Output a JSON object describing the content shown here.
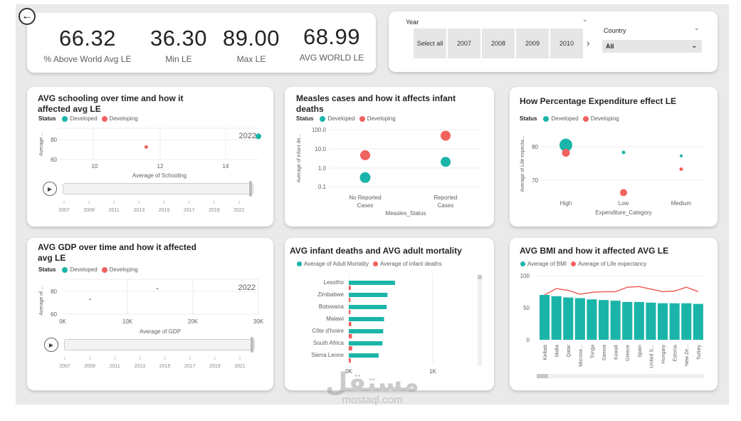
{
  "kpis": [
    {
      "value": "66.32",
      "label": "% Above World Avg LE"
    },
    {
      "value": "36.30",
      "label": "Min LE"
    },
    {
      "value": "89.00",
      "label": "Max LE"
    },
    {
      "value": "68.99",
      "label": "AVG WORLD LE"
    }
  ],
  "filters": {
    "year_title": "Year",
    "year_options": [
      "Select all",
      "2007",
      "2008",
      "2009",
      "2010"
    ],
    "country_title": "Country",
    "country_value": "All"
  },
  "colors": {
    "developed": "#1AB5A8",
    "developing": "#F0625E",
    "bar": "#1AB5A8",
    "line": "#F0625E"
  },
  "status": {
    "label": "Status",
    "developed": "Developed",
    "developing": "Developing"
  },
  "charts": {
    "schooling": {
      "title_line1": "AVG schooling over time and how it",
      "title_line2": "affected avg LE",
      "year_label": "2022",
      "xlabel": "Average of Schooling",
      "ylabel": "Average ...",
      "xticks": [
        "10",
        "12",
        "14"
      ],
      "yticks": [
        "80",
        "60"
      ],
      "timeline": [
        "2007",
        "2009",
        "2011",
        "2013",
        "2015",
        "2017",
        "2019",
        "2021"
      ]
    },
    "measles": {
      "title_line1": "Measles cases and how it affects infant",
      "title_line2": "deaths",
      "xlabel": "Measles_Status",
      "ylabel": "Average of infant de...",
      "yticks": [
        "100.0",
        "10.0",
        "1.0",
        "0.1"
      ],
      "cat1_line1": "No Reported",
      "cat1_line2": "Cases",
      "cat2_line1": "Reported",
      "cat2_line2": "Cases"
    },
    "expenditure": {
      "title": "How Percentage Expenditure effect LE",
      "xlabel": "Expenditure_Category",
      "ylabel": "Average of Life expecta...",
      "yticks": [
        "80",
        "70"
      ],
      "categories": [
        "High",
        "Low",
        "Medium"
      ]
    },
    "gdp": {
      "title_line1": "AVG GDP over time and how it affected",
      "title_line2": "avg LE",
      "year_label": "2022",
      "xlabel": "Average of GDP",
      "ylabel": "Average of ...",
      "xticks": [
        "0K",
        "10K",
        "20K",
        "30K"
      ],
      "yticks": [
        "80",
        "60"
      ],
      "timeline": [
        "2007",
        "2009",
        "2011",
        "2013",
        "2015",
        "2017",
        "2019",
        "2021"
      ]
    },
    "infant_adult": {
      "title": "AVG infant deaths and AVG adult mortality",
      "legend_a": "Average of Adult Mortality",
      "legend_b": "Average of infant deaths",
      "xticks": [
        "0K",
        "1K"
      ]
    },
    "bmi": {
      "title": "AVG BMI and how it affected AVG LE",
      "legend_a": "Average of BMI",
      "legend_b": "Average of Life expectancy",
      "yticks": [
        "100",
        "50",
        "0"
      ]
    }
  },
  "chart_data": [
    {
      "type": "scatter",
      "title": "AVG schooling over time and how it affected avg LE",
      "xlabel": "Average of Schooling",
      "ylabel": "Average ...",
      "xlim": [
        9,
        15
      ],
      "ylim": [
        55,
        90
      ],
      "series": [
        {
          "name": "Developed",
          "points": [
            {
              "x": 15.0,
              "y": 81
            }
          ]
        },
        {
          "name": "Developing",
          "points": [
            {
              "x": 11.6,
              "y": 69
            }
          ]
        }
      ]
    },
    {
      "type": "scatter",
      "title": "Measles cases and how it affects infant deaths",
      "xlabel": "Measles_Status",
      "ylabel": "Average of infant de...",
      "categories": [
        "No Reported Cases",
        "Reported Cases"
      ],
      "yscale": "log",
      "ylim": [
        0.1,
        100
      ],
      "series": [
        {
          "name": "Developed",
          "values": [
            0.3,
            2.0
          ],
          "sizes": [
            15,
            14
          ]
        },
        {
          "name": "Developing",
          "values": [
            4.5,
            48
          ],
          "sizes": [
            14,
            14
          ]
        }
      ]
    },
    {
      "type": "scatter",
      "title": "How Percentage Expenditure effect LE",
      "xlabel": "Expenditure_Category",
      "ylabel": "Average of Life expecta...",
      "categories": [
        "High",
        "Low",
        "Medium"
      ],
      "ylim": [
        64,
        88
      ],
      "series": [
        {
          "name": "Developed",
          "values": [
            80.5,
            78.3,
            77.3
          ],
          "sizes": [
            18,
            5,
            4
          ]
        },
        {
          "name": "Developing",
          "values": [
            78.2,
            66.3,
            73.3
          ],
          "sizes": [
            11,
            10,
            5
          ]
        }
      ]
    },
    {
      "type": "scatter",
      "title": "AVG GDP over time and how it affected avg LE",
      "xlabel": "Average of GDP",
      "ylabel": "Average of ...",
      "xlim": [
        0,
        30000
      ],
      "ylim": [
        57,
        90
      ],
      "series": [
        {
          "name": "Developed",
          "points": [
            {
              "x": 14500,
              "y": 81
            }
          ]
        },
        {
          "name": "Developing",
          "points": [
            {
              "x": 4200,
              "y": 71
            }
          ]
        }
      ]
    },
    {
      "type": "bar",
      "title": "AVG infant deaths and AVG adult mortality",
      "orientation": "horizontal",
      "categories": [
        "Lesotho",
        "Zimbabwe",
        "Botswana",
        "Malawi",
        "Côte d'Ivoire",
        "South Africa",
        "Sierra Leone"
      ],
      "xlim": [
        0,
        1000
      ],
      "series": [
        {
          "name": "Average of Adult Mortality",
          "values": [
            550,
            460,
            450,
            420,
            410,
            400,
            355
          ]
        },
        {
          "name": "Average of infant deaths",
          "values": [
            25,
            20,
            20,
            30,
            38,
            40,
            25
          ]
        }
      ]
    },
    {
      "type": "bar",
      "title": "AVG BMI and how it affected AVG LE",
      "categories": [
        "Kiribati",
        "Malta",
        "Qatar",
        "Microne...",
        "Tonga",
        "Samoa",
        "Kuwait",
        "Greece",
        "Spain",
        "United S...",
        "Hungary",
        "Estonia",
        "New Ze...",
        "Turkey"
      ],
      "ylim": [
        0,
        100
      ],
      "series": [
        {
          "name": "Average of BMI",
          "type": "bar",
          "values": [
            70,
            68,
            66,
            65,
            63,
            62,
            61,
            59,
            59,
            58,
            57,
            57,
            57,
            56
          ]
        },
        {
          "name": "Average of Life expectancy",
          "type": "line",
          "values": [
            70,
            80,
            77,
            71,
            74,
            75,
            75,
            82,
            83,
            79,
            75,
            76,
            82,
            75
          ]
        }
      ]
    }
  ],
  "watermark": {
    "arabic": "مستقل",
    "latin": "mostaql.com"
  }
}
